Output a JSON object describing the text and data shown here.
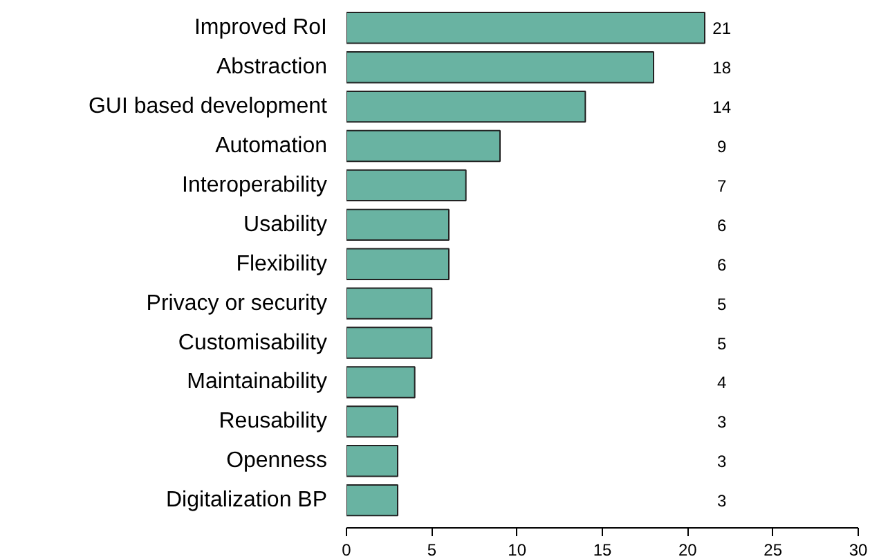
{
  "chart_data": {
    "type": "bar",
    "orientation": "horizontal",
    "categories": [
      "Improved RoI",
      "Abstraction",
      "GUI based development",
      "Automation",
      "Interoperability",
      "Usability",
      "Flexibility",
      "Privacy or security",
      "Customisability",
      "Maintainability",
      "Reusability",
      "Openness",
      "Digitalization BP"
    ],
    "values": [
      21,
      18,
      14,
      9,
      7,
      6,
      6,
      5,
      5,
      4,
      3,
      3,
      3
    ],
    "color": "#69b3a2",
    "xlim": [
      0,
      30
    ],
    "xticks": [
      0,
      5,
      10,
      15,
      20,
      25,
      30
    ],
    "grid": false,
    "data_labels": true
  }
}
